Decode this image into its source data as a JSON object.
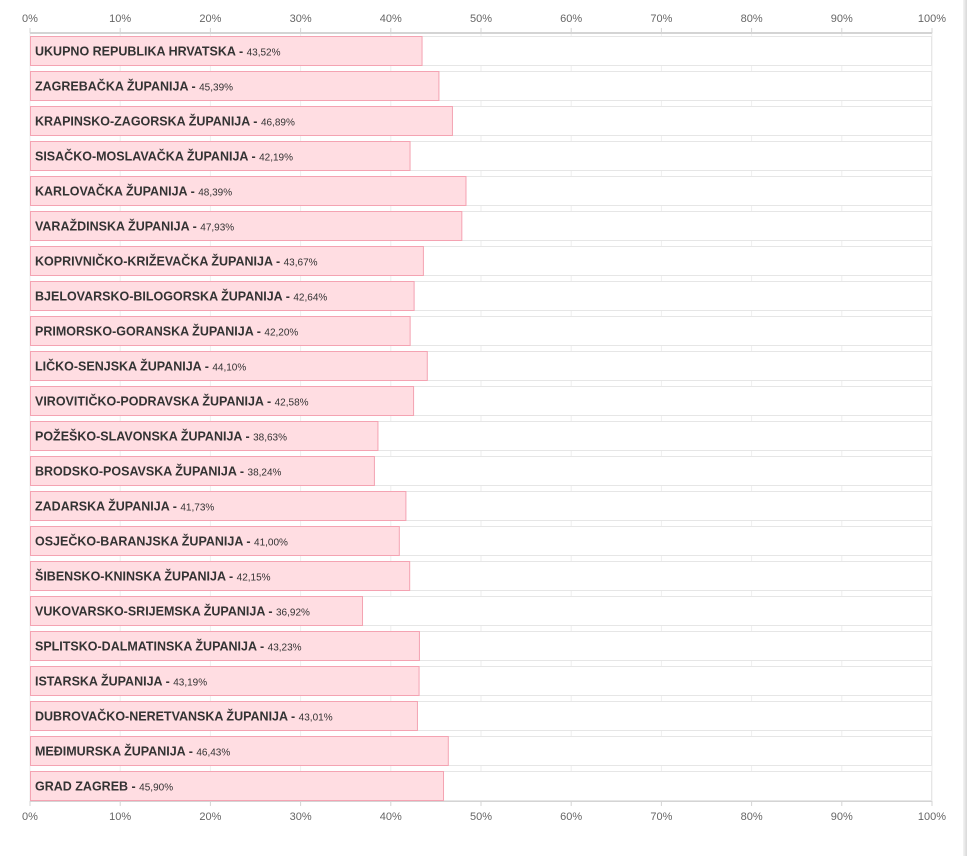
{
  "chart_data": {
    "type": "bar",
    "orientation": "horizontal",
    "xlim": [
      0,
      100
    ],
    "x_ticks": [
      {
        "value": 0,
        "label": "0%"
      },
      {
        "value": 10,
        "label": "10%"
      },
      {
        "value": 20,
        "label": "20%"
      },
      {
        "value": 30,
        "label": "30%"
      },
      {
        "value": 40,
        "label": "40%"
      },
      {
        "value": 50,
        "label": "50%"
      },
      {
        "value": 60,
        "label": "60%"
      },
      {
        "value": 70,
        "label": "70%"
      },
      {
        "value": 80,
        "label": "80%"
      },
      {
        "value": 90,
        "label": "90%"
      },
      {
        "value": 100,
        "label": "100%"
      }
    ],
    "grid": true,
    "legend": "none",
    "colors": {
      "bar_fill": "#ffdde2",
      "bar_stroke": "#f4a3b2",
      "track_fill": "#ffffff",
      "track_stroke": "#e6e6e6",
      "axis": "#d4d4d4",
      "grid": "#eeeeee"
    },
    "bars": [
      {
        "name": "UKUPNO REPUBLIKA HRVATSKA",
        "value": 43.52,
        "value_label": "43,52%"
      },
      {
        "name": "ZAGREBAČKA ŽUPANIJA",
        "value": 45.39,
        "value_label": "45,39%"
      },
      {
        "name": "KRAPINSKO-ZAGORSKA ŽUPANIJA",
        "value": 46.89,
        "value_label": "46,89%"
      },
      {
        "name": "SISAČKO-MOSLAVAČKA ŽUPANIJA",
        "value": 42.19,
        "value_label": "42,19%"
      },
      {
        "name": "KARLOVAČKA ŽUPANIJA",
        "value": 48.39,
        "value_label": "48,39%"
      },
      {
        "name": "VARAŽDINSKA ŽUPANIJA",
        "value": 47.93,
        "value_label": "47,93%"
      },
      {
        "name": "KOPRIVNIČKO-KRIŽEVAČKA ŽUPANIJA",
        "value": 43.67,
        "value_label": "43,67%"
      },
      {
        "name": "BJELOVARSKO-BILOGORSKA ŽUPANIJA",
        "value": 42.64,
        "value_label": "42,64%"
      },
      {
        "name": "PRIMORSKO-GORANSKA ŽUPANIJA",
        "value": 42.2,
        "value_label": "42,20%"
      },
      {
        "name": "LIČKO-SENJSKA ŽUPANIJA",
        "value": 44.1,
        "value_label": "44,10%"
      },
      {
        "name": "VIROVITIČKO-PODRAVSKA ŽUPANIJA",
        "value": 42.58,
        "value_label": "42,58%"
      },
      {
        "name": "POŽEŠKO-SLAVONSKA ŽUPANIJA",
        "value": 38.63,
        "value_label": "38,63%"
      },
      {
        "name": "BRODSKO-POSAVSKA ŽUPANIJA",
        "value": 38.24,
        "value_label": "38,24%"
      },
      {
        "name": "ZADARSKA ŽUPANIJA",
        "value": 41.73,
        "value_label": "41,73%"
      },
      {
        "name": "OSJEČKO-BARANJSKA ŽUPANIJA",
        "value": 41.0,
        "value_label": "41,00%"
      },
      {
        "name": "ŠIBENSKO-KNINSKA ŽUPANIJA",
        "value": 42.15,
        "value_label": "42,15%"
      },
      {
        "name": "VUKOVARSKO-SRIJEMSKA ŽUPANIJA",
        "value": 36.92,
        "value_label": "36,92%"
      },
      {
        "name": "SPLITSKO-DALMATINSKA ŽUPANIJA",
        "value": 43.23,
        "value_label": "43,23%"
      },
      {
        "name": "ISTARSKA ŽUPANIJA",
        "value": 43.19,
        "value_label": "43,19%"
      },
      {
        "name": "DUBROVAČKO-NERETVANSKA ŽUPANIJA",
        "value": 43.01,
        "value_label": "43,01%"
      },
      {
        "name": "MEĐIMURSKA ŽUPANIJA",
        "value": 46.43,
        "value_label": "46,43%"
      },
      {
        "name": "GRAD ZAGREB",
        "value": 45.9,
        "value_label": "45,90%"
      }
    ]
  }
}
